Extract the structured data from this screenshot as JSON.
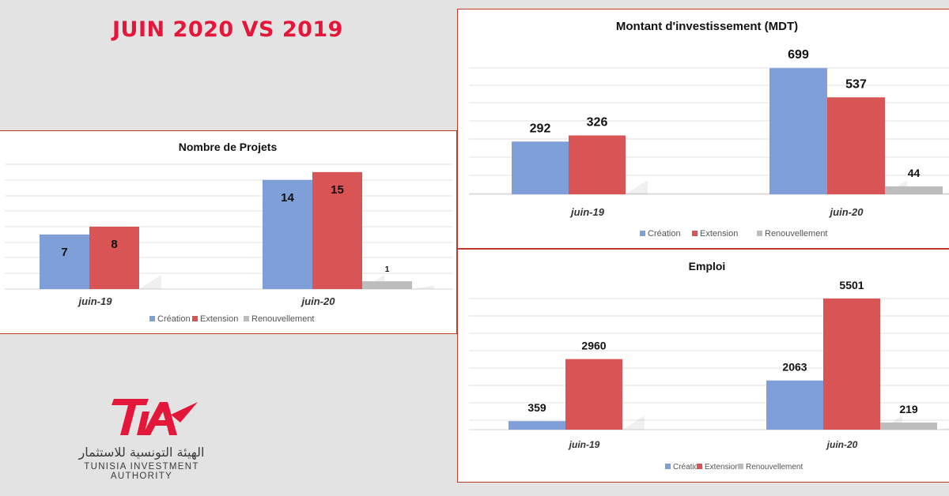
{
  "headline": "JUIN 2020 VS 2019",
  "logo": {
    "mark_text": "TIA",
    "arabic_name": "الهيئة التونسية للاستثمار",
    "english_name": "TUNISIA INVESTMENT AUTHORITY",
    "color": "#e4163a"
  },
  "colors": {
    "creation": "#7f9fd8",
    "extension": "#d95454",
    "renouvellement": "#bdbdbd",
    "accent": "#e4163a",
    "panel_border": "#c0392b"
  },
  "chart_data": [
    {
      "id": "projets",
      "type": "bar",
      "title": "Nombre de Projets",
      "categories": [
        "juin-19",
        "juin-20"
      ],
      "series": [
        {
          "name": "Création",
          "values": [
            7,
            14
          ]
        },
        {
          "name": "Extension",
          "values": [
            8,
            15
          ]
        },
        {
          "name": "Renouvellement",
          "values": [
            0,
            1
          ]
        }
      ],
      "value_labels": [
        [
          "7",
          "14"
        ],
        [
          "8",
          "15"
        ],
        [
          "",
          "1"
        ]
      ],
      "ylim": [
        0,
        16
      ],
      "legend": "bottom",
      "grid": true
    },
    {
      "id": "montant",
      "type": "bar",
      "title": "Montant d'investissement (MDT)",
      "categories": [
        "juin-19",
        "juin-20"
      ],
      "series": [
        {
          "name": "Création",
          "values": [
            292,
            699
          ]
        },
        {
          "name": "Extension",
          "values": [
            326,
            537
          ]
        },
        {
          "name": "Renouvellement",
          "values": [
            0,
            44
          ]
        }
      ],
      "value_labels": [
        [
          "292",
          "699"
        ],
        [
          "326",
          "537"
        ],
        [
          "",
          "44"
        ]
      ],
      "ylim": [
        0,
        700
      ],
      "legend": "bottom",
      "grid": true
    },
    {
      "id": "emploi",
      "type": "bar",
      "title": "Emploi",
      "categories": [
        "juin-19",
        "juin-20"
      ],
      "series": [
        {
          "name": "Création",
          "values": [
            359,
            2063
          ]
        },
        {
          "name": "Extension",
          "values": [
            2960,
            5501
          ]
        },
        {
          "name": "Renouvellement",
          "values": [
            0,
            219
          ]
        }
      ],
      "value_labels": [
        [
          "359",
          "2063"
        ],
        [
          "2960",
          "5501"
        ],
        [
          "",
          "219"
        ]
      ],
      "ylim": [
        0,
        5500
      ],
      "legend": "bottom",
      "grid": true
    }
  ]
}
